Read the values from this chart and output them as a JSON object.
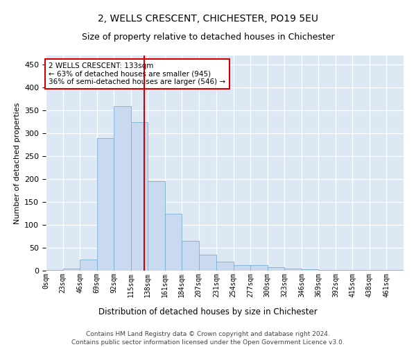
{
  "title": "2, WELLS CRESCENT, CHICHESTER, PO19 5EU",
  "subtitle": "Size of property relative to detached houses in Chichester",
  "xlabel": "Distribution of detached houses by size in Chichester",
  "ylabel": "Number of detached properties",
  "bin_labels": [
    "0sqm",
    "23sqm",
    "46sqm",
    "69sqm",
    "92sqm",
    "115sqm",
    "138sqm",
    "161sqm",
    "184sqm",
    "207sqm",
    "231sqm",
    "254sqm",
    "277sqm",
    "300sqm",
    "323sqm",
    "346sqm",
    "369sqm",
    "392sqm",
    "415sqm",
    "438sqm",
    "461sqm"
  ],
  "bin_edges": [
    0,
    23,
    46,
    69,
    92,
    115,
    138,
    161,
    184,
    207,
    231,
    254,
    277,
    300,
    323,
    346,
    369,
    392,
    415,
    438,
    461,
    484
  ],
  "bar_heights": [
    2,
    5,
    25,
    290,
    360,
    325,
    195,
    125,
    65,
    35,
    20,
    12,
    12,
    8,
    5,
    3,
    2,
    2,
    2,
    1,
    1
  ],
  "bar_color": "#c9d9f0",
  "bar_edge_color": "#7bafd4",
  "bg_color": "#dde8f5",
  "grid_color": "#ffffff",
  "vline_x": 133,
  "vline_color": "#cc0000",
  "annotation_text": "2 WELLS CRESCENT: 133sqm\n← 63% of detached houses are smaller (945)\n36% of semi-detached houses are larger (546) →",
  "annotation_box_facecolor": "#ffffff",
  "annotation_box_edgecolor": "#cc0000",
  "ylim": [
    0,
    470
  ],
  "yticks": [
    0,
    50,
    100,
    150,
    200,
    250,
    300,
    350,
    400,
    450
  ],
  "title_fontsize": 10,
  "subtitle_fontsize": 9,
  "footer_line1": "Contains HM Land Registry data © Crown copyright and database right 2024.",
  "footer_line2": "Contains public sector information licensed under the Open Government Licence v3.0."
}
